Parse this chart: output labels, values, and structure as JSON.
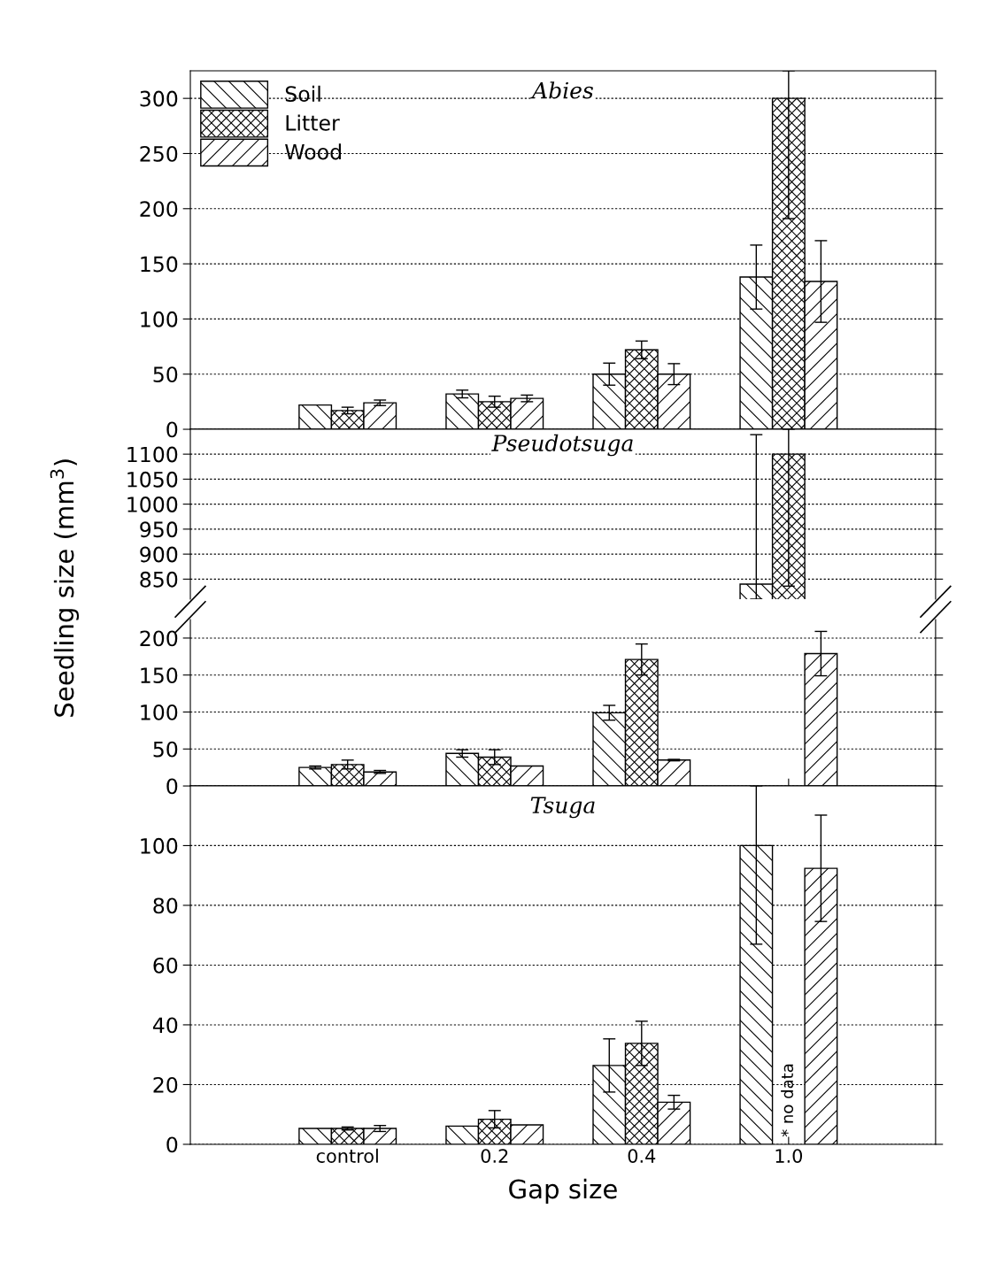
{
  "chart_data": [
    {
      "type": "bar",
      "title": "Abies",
      "categories": [
        null,
        null,
        null,
        null
      ],
      "ylim": [
        0,
        325
      ],
      "yticks": [
        0,
        50,
        100,
        150,
        200,
        250,
        300
      ],
      "grid": "y",
      "legend": "top left",
      "tick_labels": "y",
      "series": [
        {
          "name": "Soil",
          "color": "#000000",
          "values": [
            22,
            32,
            50,
            138
          ],
          "errors": [
            null,
            3.5,
            10,
            29
          ]
        },
        {
          "name": "Litter",
          "color": "#000000",
          "values": [
            17,
            25,
            72,
            300
          ],
          "errors": [
            3,
            5,
            8,
            [
              191,
              325
            ]
          ]
        },
        {
          "name": "Wood",
          "color": "#000000",
          "values": [
            24,
            28,
            50,
            134
          ],
          "errors": [
            2.5,
            3,
            9.5,
            37
          ]
        }
      ]
    },
    {
      "type": "bar",
      "title": "Pseudotsuga",
      "ylabel": "Seedling size (mm$^{3}$)",
      "categories": [
        null,
        null,
        null,
        null
      ],
      "ylim": [
        810,
        1150
      ],
      "yticks": [
        850,
        900,
        950,
        1000,
        1050,
        1100
      ],
      "grid": "y",
      "tick_labels": "y",
      "series": [
        {
          "color": "#000000",
          "values": [
            null,
            null,
            null,
            840
          ],
          "errors": [
            null,
            null,
            null,
            [
              810,
              1139
            ]
          ]
        },
        {
          "color": "#000000",
          "values": [
            null,
            null,
            null,
            1100
          ],
          "errors": [
            null,
            null,
            null,
            [
              836,
              1150
            ]
          ]
        },
        {
          "color": "#000000",
          "values": [
            null,
            null,
            null,
            null
          ]
        }
      ]
    },
    {
      "type": "bar",
      "categories": [
        null,
        null,
        null,
        null
      ],
      "ylim": [
        0,
        225
      ],
      "yticks": [
        0,
        50,
        100,
        150,
        200
      ],
      "grid": "y",
      "tick_labels": "y",
      "series": [
        {
          "color": "#000000",
          "values": [
            25,
            44,
            99,
            null
          ],
          "errors": [
            2,
            5,
            10,
            null
          ]
        },
        {
          "color": "#000000",
          "values": [
            29,
            39,
            171,
            null
          ],
          "errors": [
            6,
            10,
            21,
            null
          ]
        },
        {
          "color": "#000000",
          "values": [
            19,
            27,
            35,
            179
          ],
          "errors": [
            2,
            null,
            1,
            30
          ]
        }
      ]
    },
    {
      "type": "bar",
      "title": "Tsuga",
      "xlabel": "Gap size",
      "categories": [
        "control",
        "0.2",
        "0.4",
        "1.0"
      ],
      "ylim": [
        0,
        120
      ],
      "yticks": [
        0,
        20,
        40,
        60,
        80,
        100
      ],
      "grid": "y",
      "annotations": [
        "* no data"
      ],
      "series": [
        {
          "color": "#000000",
          "values": [
            5.3,
            6.1,
            26.4,
            100
          ],
          "errors": [
            null,
            null,
            8.9,
            [
              67,
              120
            ]
          ]
        },
        {
          "color": "#000000",
          "values": [
            5.3,
            8.4,
            33.8,
            null
          ],
          "errors": [
            0.5,
            2.9,
            7.4,
            null
          ]
        },
        {
          "color": "#000000",
          "values": [
            5.3,
            6.5,
            14.1,
            92.4
          ],
          "errors": [
            1,
            null,
            2.3,
            17.8
          ]
        }
      ]
    }
  ]
}
